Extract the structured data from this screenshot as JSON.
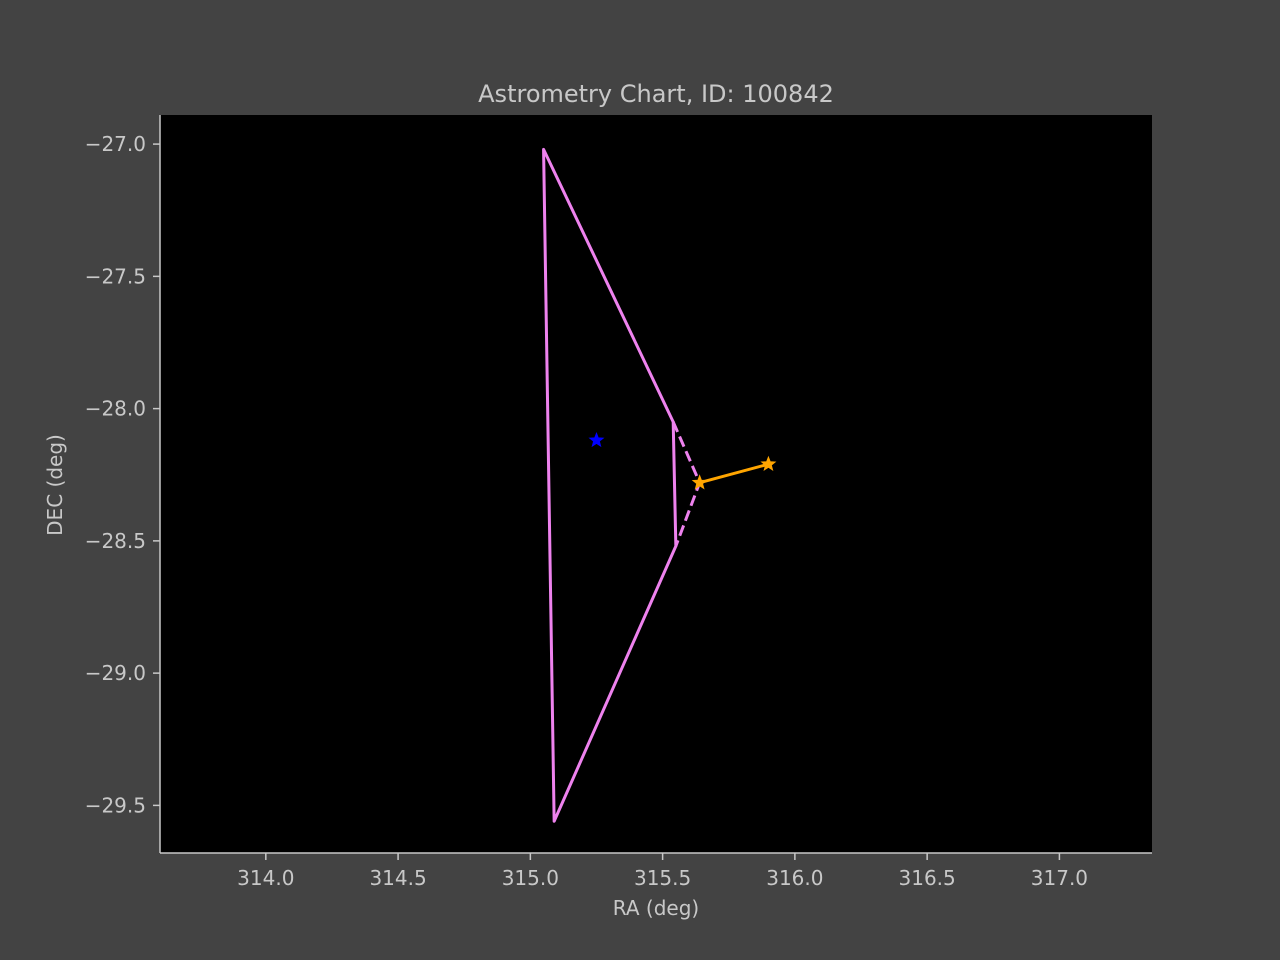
{
  "chart_data": {
    "type": "line",
    "title": "Astrometry Chart, ID: 100842",
    "xlabel": "RA (deg)",
    "ylabel": "DEC (deg)",
    "xlim": [
      313.6,
      317.35
    ],
    "ylim": [
      -29.68,
      -26.89
    ],
    "x_ticks": [
      314.0,
      314.5,
      315.0,
      315.5,
      316.0,
      316.5,
      317.0
    ],
    "x_tick_labels": [
      "314.0",
      "314.5",
      "315.0",
      "315.5",
      "316.0",
      "316.5",
      "317.0"
    ],
    "y_ticks": [
      -27.0,
      -27.5,
      -28.0,
      -28.5,
      -29.0,
      -29.5
    ],
    "y_tick_labels": [
      "−27.0",
      "−27.5",
      "−28.0",
      "−28.5",
      "−29.0",
      "−29.5"
    ],
    "grid": false,
    "background": "#000000",
    "figure_background": "#434343",
    "text_color": "#c8c8c8",
    "series": [
      {
        "kind": "solid-line",
        "color": "#ee82ee",
        "x": [
          315.54,
          315.05,
          315.09,
          315.55,
          315.54
        ],
        "y": [
          -28.05,
          -27.02,
          -29.56,
          -28.52,
          -28.05
        ]
      },
      {
        "kind": "dashed-line",
        "color": "#ee82ee",
        "x": [
          315.54,
          315.64,
          315.55
        ],
        "y": [
          -28.05,
          -28.28,
          -28.52
        ]
      },
      {
        "kind": "solid-line-with-markers",
        "color": "#ffa500",
        "marker": "star",
        "x": [
          315.64,
          315.9
        ],
        "y": [
          -28.28,
          -28.21
        ]
      },
      {
        "kind": "marker",
        "color": "#0000ff",
        "marker": "star",
        "x": [
          315.25
        ],
        "y": [
          -28.12
        ]
      }
    ]
  }
}
